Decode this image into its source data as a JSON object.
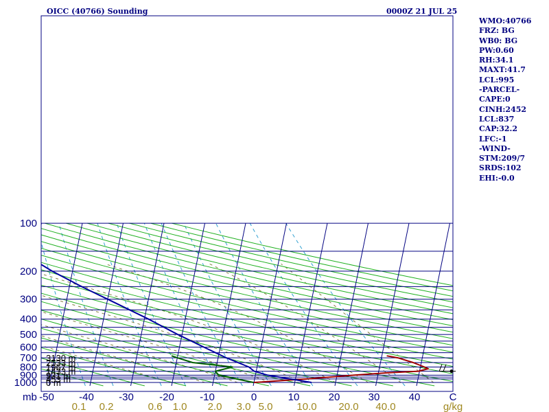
{
  "header": {
    "title": "OICC (40766) Sounding",
    "datetime": "0000Z 21 JUL 25"
  },
  "stats": [
    "WMO:40766",
    "FRZ: BG",
    "WB0: BG",
    "PW:0.60",
    "RH:34.1",
    "MAXT:41.7",
    "LCL:995",
    "-PARCEL-",
    "CAPE:0",
    "CINH:2452",
    "LCL:837",
    "CAP:32.2",
    "LFC:-1",
    "-WIND-",
    "STM:209/7",
    "SRDS:102",
    "EHI:-0.0"
  ],
  "chart_data": {
    "type": "line",
    "subtype": "skew-T log-P sounding",
    "y_axis_label": "mb",
    "y_scale": "log",
    "pressure_range": [
      100,
      1050
    ],
    "pressure_tick_labels": [
      100,
      200,
      300,
      400,
      500,
      600,
      700,
      800,
      900,
      1000
    ],
    "isobar_levels": [
      100,
      150,
      200,
      250,
      300,
      350,
      400,
      450,
      500,
      550,
      600,
      650,
      700,
      750,
      800,
      850,
      900,
      925,
      950,
      1000
    ],
    "temperature_ticks": [
      "-50",
      "-40",
      "-30",
      "-20",
      "-10",
      "0",
      "10",
      "20",
      "30",
      "40",
      "C"
    ],
    "mixing_ratio_labels": [
      "0.1",
      "0.2",
      "0.6",
      "1.0",
      "2.0",
      "3.0",
      "5.0",
      "10.0",
      "20.0",
      "40.0",
      "g/kg"
    ],
    "height_labels": [
      {
        "p": 700,
        "label": "3130 m"
      },
      {
        "p": 750,
        "label": "2533 m"
      },
      {
        "p": 800,
        "label": "1967 m"
      },
      {
        "p": 850,
        "label": "1433 m"
      },
      {
        "p": 900,
        "label": "931 m"
      },
      {
        "p": 950,
        "label": "453 m"
      },
      {
        "p": 1000,
        "label": "0 m"
      }
    ],
    "series": [
      {
        "role": "temperature",
        "color": "#a00000",
        "points": [
          {
            "p": 1000,
            "t": 0.0
          },
          {
            "p": 950,
            "t": 13.0
          },
          {
            "p": 900,
            "t": 24.0
          },
          {
            "p": 870,
            "t": 32.0
          },
          {
            "p": 850,
            "t": 39.7
          },
          {
            "p": 820,
            "t": 42.0
          },
          {
            "p": 800,
            "t": 41.0
          },
          {
            "p": 750,
            "t": 38.0
          },
          {
            "p": 700,
            "t": 34.0
          },
          {
            "p": 680,
            "t": 31.2
          }
        ]
      },
      {
        "role": "dewpoint",
        "color": "#006000",
        "points": [
          {
            "p": 1000,
            "t": -0.1
          },
          {
            "p": 900,
            "t": -9.0
          },
          {
            "p": 850,
            "t": -10.0
          },
          {
            "p": 800,
            "t": -6.0
          },
          {
            "p": 750,
            "t": -16.0
          },
          {
            "p": 700,
            "t": -20.0
          },
          {
            "p": 680,
            "t": -21.5
          }
        ]
      },
      {
        "role": "parcel-trace",
        "color": "#0000a0",
        "points": [
          {
            "p": 1000,
            "t": 14.1
          },
          {
            "p": 900,
            "t": 3.0
          },
          {
            "p": 850,
            "t": -0.5
          },
          {
            "p": 800,
            "t": -2.0
          },
          {
            "p": 700,
            "t": -8.0
          },
          {
            "p": 600,
            "t": -14.0
          },
          {
            "p": 500,
            "t": -21.0
          },
          {
            "p": 400,
            "t": -29.0
          },
          {
            "p": 300,
            "t": -40.0
          },
          {
            "p": 250,
            "t": -47.0
          },
          {
            "p": 200,
            "t": -55.0
          },
          {
            "p": 150,
            "t": -64.0
          },
          {
            "p": 120,
            "t": -71.0
          }
        ]
      }
    ],
    "wind_barbs": [
      {
        "p": 850,
        "direction": 270,
        "speed": 15
      }
    ],
    "grid": true,
    "legend": "none"
  }
}
